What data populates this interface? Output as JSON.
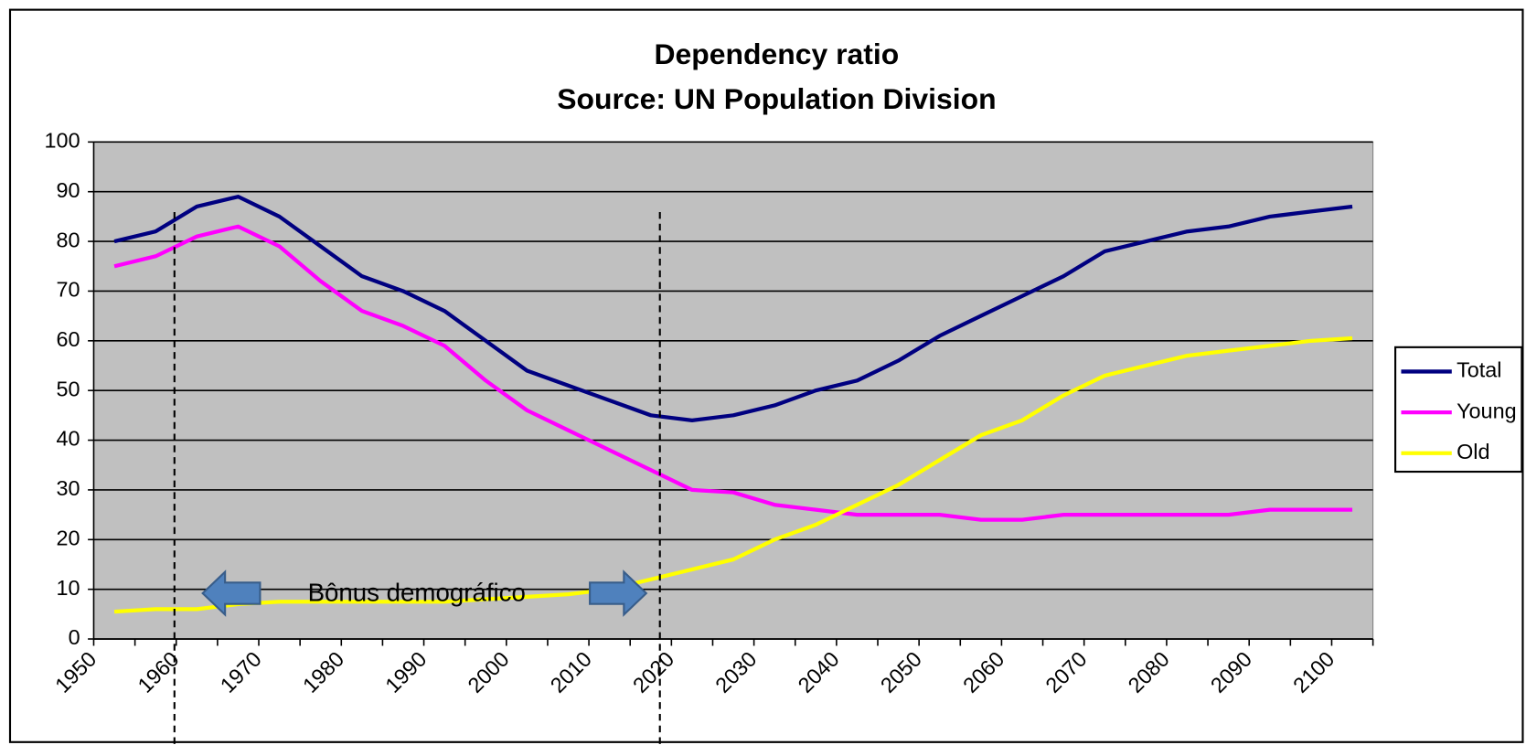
{
  "chart_data": {
    "type": "line",
    "title": "Dependency ratio",
    "subtitle": "Source: UN  Population Division",
    "annotation": "Bônus demográfico",
    "categories": [
      "1950",
      null,
      "1960",
      null,
      "1970",
      null,
      "1980",
      null,
      "1990",
      null,
      "2000",
      null,
      "2010",
      null,
      "2020",
      null,
      "2030",
      null,
      "2040",
      null,
      "2050",
      null,
      "2060",
      null,
      "2070",
      null,
      "2080",
      null,
      "2090",
      null,
      "2100"
    ],
    "series": [
      {
        "name": "Total",
        "color": "#000080",
        "values": [
          80,
          82,
          87,
          89,
          85,
          79,
          73,
          70,
          66,
          60,
          54,
          51,
          48,
          45,
          44,
          45,
          47,
          50,
          52,
          56,
          61,
          65,
          69,
          73,
          78,
          80,
          82,
          83,
          85,
          86,
          87
        ]
      },
      {
        "name": "Young",
        "color": "#ff00ff",
        "values": [
          75,
          77,
          81,
          83,
          79,
          72,
          66,
          63,
          59,
          52,
          46,
          42,
          38,
          34,
          30,
          29.5,
          27,
          26,
          25,
          25,
          25,
          24,
          24,
          25,
          25,
          25,
          25,
          25,
          26,
          26,
          26
        ]
      },
      {
        "name": "Old",
        "color": "#ffff00",
        "values": [
          5.5,
          6,
          6,
          7,
          7.5,
          7.5,
          7.5,
          7.5,
          7.5,
          8,
          8.5,
          9,
          10,
          12,
          14,
          16,
          20,
          23,
          27,
          31,
          36,
          41,
          44,
          49,
          53,
          55,
          57,
          58,
          59,
          60,
          60.5
        ]
      }
    ],
    "ylim": [
      0,
      100
    ],
    "yticks": [
      0,
      10,
      20,
      30,
      40,
      50,
      60,
      70,
      80,
      90,
      100
    ],
    "grid": true,
    "legend": "right"
  }
}
